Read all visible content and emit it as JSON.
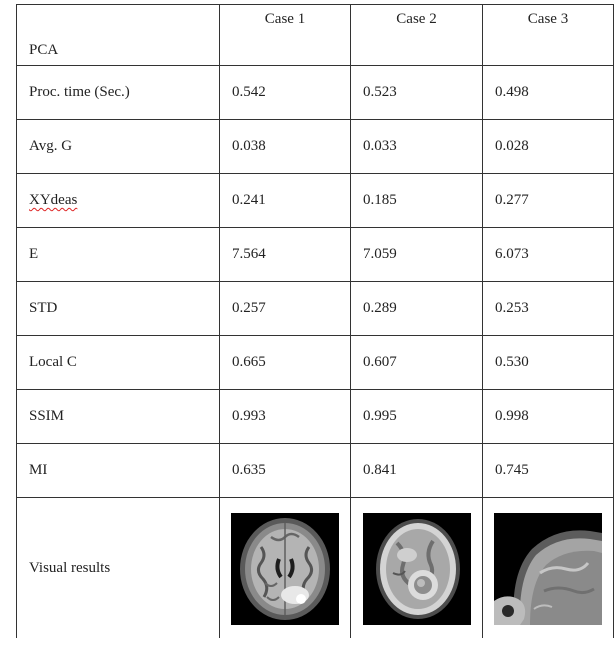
{
  "table": {
    "corner_label": "PCA",
    "columns": [
      "Case 1",
      "Case 2",
      "Case 3"
    ],
    "rows": [
      {
        "label": "Proc. time (Sec.)",
        "values": [
          "0.542",
          "0.523",
          "0.498"
        ]
      },
      {
        "label": "Avg. G",
        "values": [
          "0.038",
          "0.033",
          "0.028"
        ]
      },
      {
        "label": "XYdeas",
        "values": [
          "0.241",
          "0.185",
          "0.277"
        ]
      },
      {
        "label": "E",
        "values": [
          "7.564",
          "7.059",
          "6.073"
        ]
      },
      {
        "label": "STD",
        "values": [
          "0.257",
          "0.289",
          "0.253"
        ]
      },
      {
        "label": "Local C",
        "values": [
          "0.665",
          "0.607",
          "0.530"
        ]
      },
      {
        "label": "SSIM",
        "values": [
          "0.993",
          "0.995",
          "0.998"
        ]
      },
      {
        "label": "MI",
        "values": [
          "0.635",
          "0.841",
          "0.745"
        ]
      }
    ],
    "visual_row_label": "Visual results",
    "images": [
      "brain-mri-axial-icon",
      "brain-mri-axial-lesion-icon",
      "brain-mri-sagittal-icon"
    ]
  }
}
